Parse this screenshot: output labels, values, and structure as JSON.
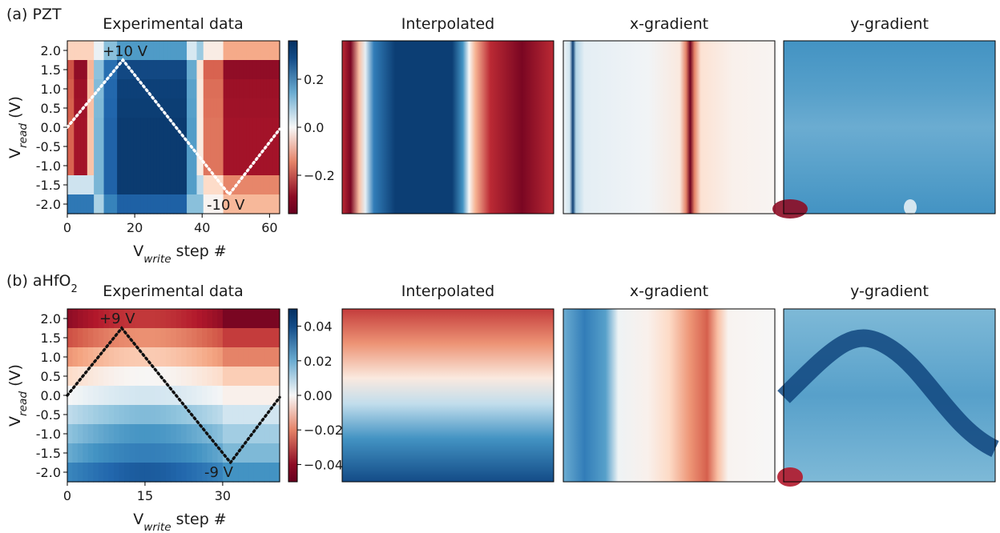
{
  "chart_data": [
    {
      "type": "heatmap",
      "panel_label": "(a)",
      "material": "PZT",
      "subplot_titles": [
        "Experimental data",
        "Interpolated",
        "x-gradient",
        "y-gradient"
      ],
      "xlabel": {
        "base": "V",
        "sub": "write",
        "rest": " step #"
      },
      "ylabel": {
        "base": "V",
        "sub": "read",
        "rest": " (V)"
      },
      "xlim": [
        0,
        63
      ],
      "xticks": [
        "0",
        "20",
        "40",
        "60"
      ],
      "ylim": [
        -2.25,
        2.25
      ],
      "yticks": [
        "2.0",
        "1.5",
        "1.0",
        "0.5",
        "0.0",
        "-0.5",
        "-1.0",
        "-1.5",
        "-2.0"
      ],
      "colorbar_range": [
        -0.36,
        0.36
      ],
      "colorbar_ticks": [
        "0.2",
        "0.0",
        "−0.2"
      ],
      "colormap": "RdBu",
      "waveform": {
        "x": [
          0,
          16.5,
          48,
          63
        ],
        "y": [
          0.0,
          1.75,
          -1.75,
          -0.05
        ],
        "style": "dotted white"
      },
      "annotations": [
        "+10 V",
        "-10 V"
      ]
    },
    {
      "type": "heatmap",
      "panel_label": "(b)",
      "material_base": "aHfO",
      "material_sub": "2",
      "subplot_titles": [
        "Experimental data",
        "Interpolated",
        "x-gradient",
        "y-gradient"
      ],
      "xlabel": {
        "base": "V",
        "sub": "write",
        "rest": " step #"
      },
      "ylabel": {
        "base": "V",
        "sub": "read",
        "rest": " (V)"
      },
      "xlim": [
        0,
        41
      ],
      "xticks": [
        "0",
        "15",
        "30"
      ],
      "ylim": [
        -2.25,
        2.25
      ],
      "yticks": [
        "2.0",
        "1.5",
        "1.0",
        "0.5",
        "0.0",
        "-0.5",
        "-1.0",
        "-1.5",
        "-2.0"
      ],
      "colorbar_range": [
        -0.05,
        0.05
      ],
      "colorbar_ticks": [
        "0.04",
        "0.02",
        "0.00",
        "−0.02",
        "−0.04"
      ],
      "colormap": "RdBu",
      "waveform": {
        "x": [
          0,
          10.5,
          31.5,
          41
        ],
        "y": [
          0.0,
          1.75,
          -1.75,
          -0.05
        ],
        "style": "dotted black"
      },
      "annotations": [
        "+9 V",
        "-9 V"
      ]
    }
  ],
  "colors": {
    "dark_red": "#67001f",
    "red": "#b2182b",
    "salmon": "#d6604d",
    "light_salmon": "#f4a582",
    "peach": "#fddbc7",
    "white": "#f7f7f7",
    "pale_blue": "#d1e5f0",
    "light_blue": "#92c5de",
    "blue": "#4393c3",
    "mid_blue": "#2166ac",
    "dark_blue": "#053061"
  }
}
